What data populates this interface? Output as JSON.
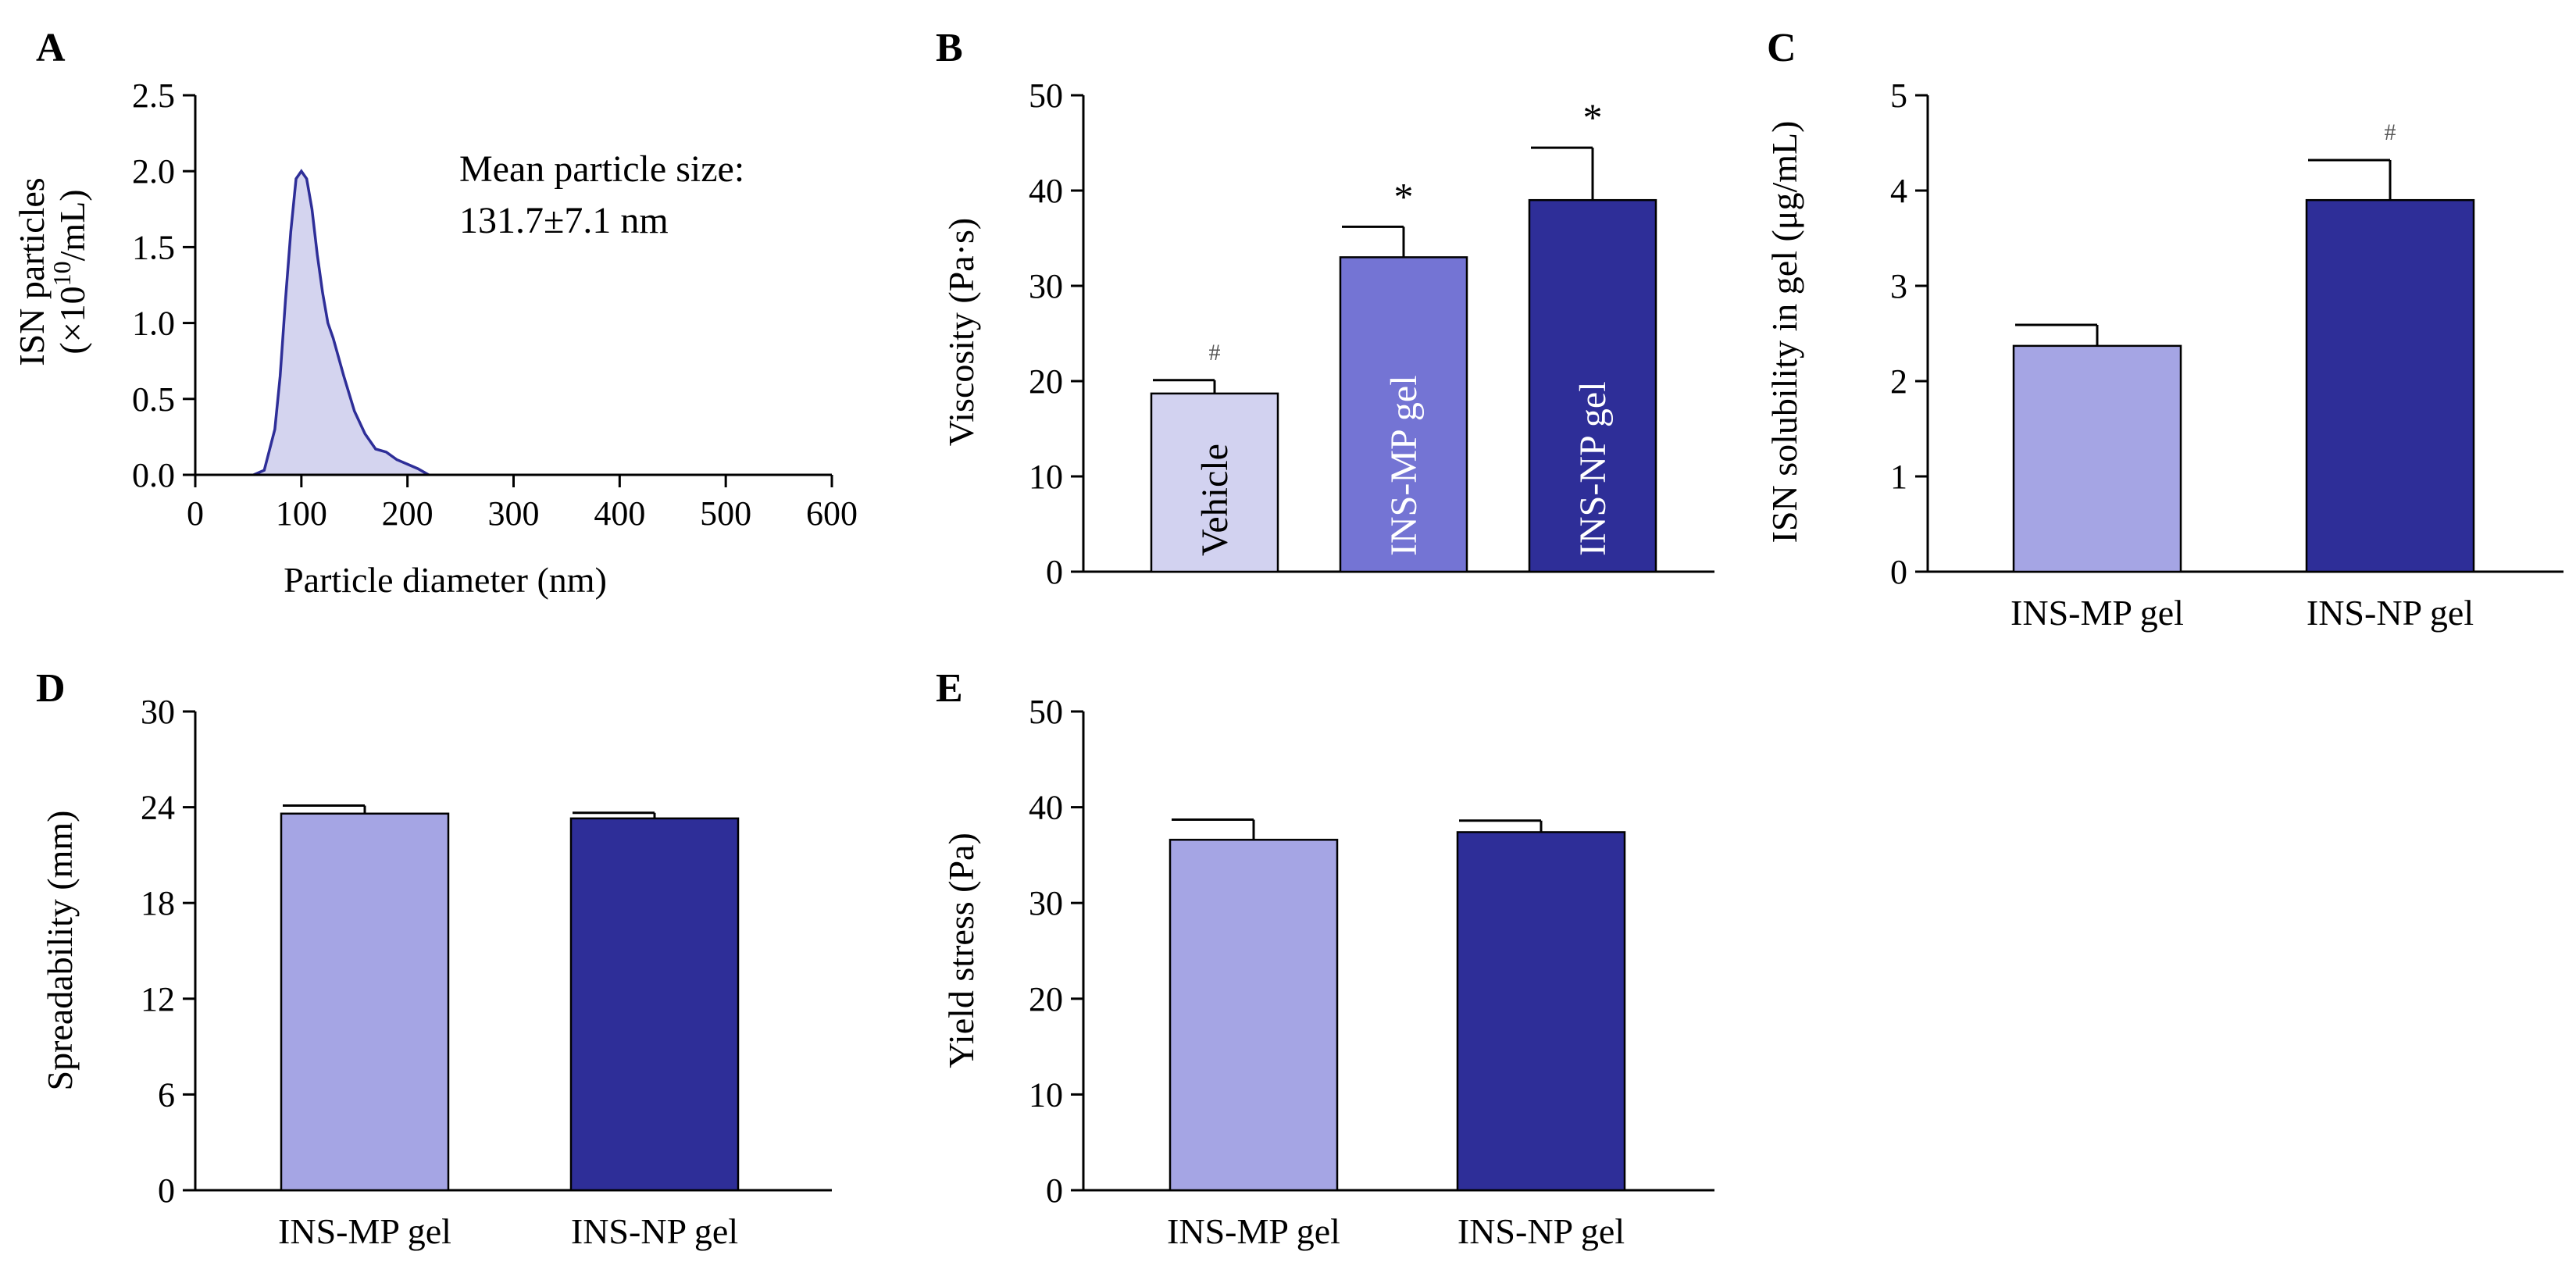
{
  "colors": {
    "light": "#d2d2f0",
    "mid": "#7474d4",
    "pale": "#a5a5e4",
    "dark": "#2e2e98",
    "axis": "#000000",
    "curve_fill": "#d4d4ef",
    "curve_line": "#2e2e98"
  },
  "chart_data": [
    {
      "id": "A",
      "panel_label": "A",
      "type": "area",
      "title": "",
      "xlabel": "Particle diameter (nm)",
      "ylabel_line1": "ISN particles",
      "ylabel_line2_prefix": "(×10",
      "ylabel_line2_exp": "10",
      "ylabel_line2_suffix": "/mL)",
      "xlim": [
        0,
        600
      ],
      "ylim": [
        0,
        2.5
      ],
      "xticks": [
        "0",
        "100",
        "200",
        "300",
        "400",
        "500",
        "600"
      ],
      "yticks": [
        "0.0",
        "0.5",
        "1.0",
        "1.5",
        "2.0",
        "2.5"
      ],
      "annotation_line1": "Mean particle size:",
      "annotation_line2": "131.7±7.1 nm",
      "x": [
        55,
        65,
        75,
        80,
        85,
        90,
        95,
        100,
        105,
        110,
        115,
        120,
        125,
        130,
        140,
        150,
        160,
        170,
        180,
        190,
        200,
        210,
        220
      ],
      "y": [
        0.0,
        0.03,
        0.3,
        0.65,
        1.15,
        1.6,
        1.95,
        2.0,
        1.95,
        1.75,
        1.45,
        1.2,
        1.0,
        0.9,
        0.65,
        0.42,
        0.27,
        0.17,
        0.15,
        0.1,
        0.07,
        0.04,
        0.0
      ]
    },
    {
      "id": "B",
      "panel_label": "B",
      "type": "bar",
      "title": "",
      "xlabel": "",
      "ylabel": "Viscosity (Pa·s)",
      "ylim": [
        0,
        50
      ],
      "yticks": [
        "0",
        "10",
        "20",
        "30",
        "40",
        "50"
      ],
      "categories": [
        "Vehicle",
        "INS-MP gel",
        "INS-NP gel"
      ],
      "values": [
        18.7,
        33.0,
        39.0
      ],
      "errors": [
        1.4,
        3.2,
        5.5
      ],
      "annotations": [
        "#",
        "*",
        "*"
      ],
      "colors": [
        "#d2d2f0",
        "#7474d4",
        "#2e2e98"
      ],
      "label_colors": [
        "#000000",
        "#ffffff",
        "#ffffff"
      ]
    },
    {
      "id": "C",
      "panel_label": "C",
      "type": "bar",
      "title": "",
      "xlabel": "",
      "ylabel": "ISN solubility in gel (μg/mL)",
      "ylim": [
        0,
        5
      ],
      "yticks": [
        "0",
        "1",
        "2",
        "3",
        "4",
        "5"
      ],
      "categories": [
        "INS-MP gel",
        "INS-NP gel"
      ],
      "values": [
        2.37,
        3.9
      ],
      "errors": [
        0.22,
        0.42
      ],
      "annotations": [
        "",
        "#"
      ],
      "colors": [
        "#a5a5e4",
        "#2e2e98"
      ]
    },
    {
      "id": "D",
      "panel_label": "D",
      "type": "bar",
      "title": "",
      "xlabel": "",
      "ylabel": "Spreadability (mm)",
      "ylim": [
        0,
        30
      ],
      "yticks": [
        "0",
        "6",
        "12",
        "18",
        "24",
        "30"
      ],
      "categories": [
        "INS-MP gel",
        "INS-NP gel"
      ],
      "values": [
        23.6,
        23.3
      ],
      "errors": [
        0.5,
        0.35
      ],
      "annotations": [
        "",
        ""
      ],
      "colors": [
        "#a5a5e4",
        "#2e2e98"
      ]
    },
    {
      "id": "E",
      "panel_label": "E",
      "type": "bar",
      "title": "",
      "xlabel": "",
      "ylabel": "Yield stress (Pa)",
      "ylim": [
        0,
        50
      ],
      "yticks": [
        "0",
        "10",
        "20",
        "30",
        "40",
        "50"
      ],
      "categories": [
        "INS-MP gel",
        "INS-NP gel"
      ],
      "values": [
        36.6,
        37.4
      ],
      "errors": [
        2.1,
        1.2
      ],
      "annotations": [
        "",
        ""
      ],
      "colors": [
        "#a5a5e4",
        "#2e2e98"
      ]
    }
  ]
}
